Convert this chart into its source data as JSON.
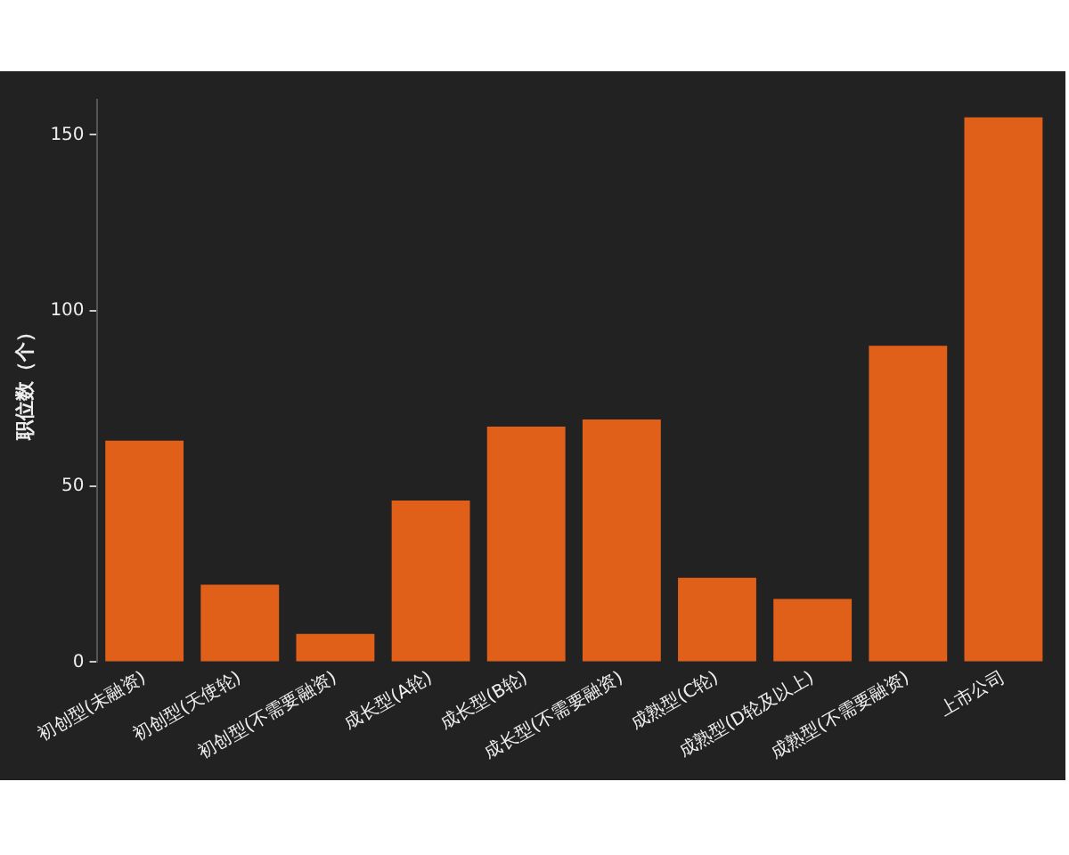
{
  "chart_data": {
    "type": "bar",
    "ylabel": "职位数（个）",
    "categories": [
      "初创型(未融资)",
      "初创型(天使轮)",
      "初创型(不需要融资)",
      "成长型(A轮)",
      "成长型(B轮)",
      "成长型(不需要融资)",
      "成熟型(C轮)",
      "成熟型(D轮及以上)",
      "成熟型(不需要融资)",
      "上市公司"
    ],
    "values": [
      63,
      22,
      8,
      46,
      67,
      69,
      24,
      18,
      90,
      155
    ],
    "color": "#e0601a",
    "ylim": [
      0,
      160
    ],
    "yticks": [
      0,
      50,
      100,
      150
    ],
    "grid": false,
    "legend": false
  }
}
